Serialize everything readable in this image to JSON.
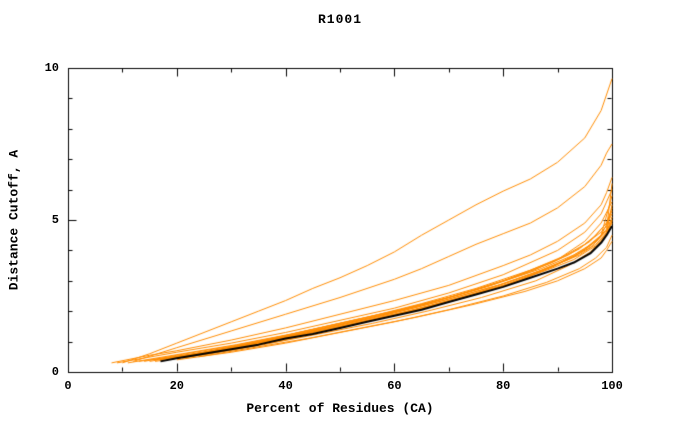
{
  "chart_data": {
    "type": "line",
    "title": "R1001",
    "xlabel": "Percent of Residues (CA)",
    "ylabel": "Distance Cutoff, A",
    "xlim": [
      0,
      100
    ],
    "ylim": [
      0,
      10
    ],
    "x_ticks": [
      0,
      20,
      40,
      60,
      80,
      100
    ],
    "y_ticks": [
      0,
      5,
      10
    ],
    "x_minor_step": 10,
    "y_minor_step": 1,
    "grid": false,
    "legend": "none",
    "colors": {
      "model": "#ff8c00",
      "reference": "#000000",
      "frame": "#000000"
    },
    "series": [
      {
        "name": "model-01",
        "role": "model",
        "points": [
          [
            10,
            0.3
          ],
          [
            15,
            0.6
          ],
          [
            20,
            0.95
          ],
          [
            25,
            1.3
          ],
          [
            30,
            1.65
          ],
          [
            35,
            2.0
          ],
          [
            40,
            2.35
          ],
          [
            45,
            2.75
          ],
          [
            50,
            3.1
          ],
          [
            55,
            3.5
          ],
          [
            60,
            3.95
          ],
          [
            65,
            4.5
          ],
          [
            70,
            5.0
          ],
          [
            75,
            5.5
          ],
          [
            80,
            5.95
          ],
          [
            85,
            6.35
          ],
          [
            90,
            6.9
          ],
          [
            95,
            7.7
          ],
          [
            98,
            8.6
          ],
          [
            100,
            9.65
          ]
        ]
      },
      {
        "name": "model-02",
        "role": "model",
        "points": [
          [
            12,
            0.35
          ],
          [
            20,
            0.8
          ],
          [
            30,
            1.35
          ],
          [
            40,
            1.9
          ],
          [
            50,
            2.45
          ],
          [
            60,
            3.05
          ],
          [
            65,
            3.4
          ],
          [
            70,
            3.8
          ],
          [
            75,
            4.2
          ],
          [
            80,
            4.55
          ],
          [
            85,
            4.9
          ],
          [
            90,
            5.4
          ],
          [
            95,
            6.1
          ],
          [
            98,
            6.8
          ],
          [
            99,
            7.2
          ],
          [
            100,
            7.5
          ]
        ]
      },
      {
        "name": "model-03",
        "role": "model",
        "points": [
          [
            8,
            0.3
          ],
          [
            15,
            0.55
          ],
          [
            20,
            0.7
          ],
          [
            30,
            1.05
          ],
          [
            40,
            1.45
          ],
          [
            50,
            1.9
          ],
          [
            60,
            2.35
          ],
          [
            70,
            2.85
          ],
          [
            80,
            3.5
          ],
          [
            85,
            3.85
          ],
          [
            90,
            4.3
          ],
          [
            95,
            4.9
          ],
          [
            98,
            5.5
          ],
          [
            99,
            5.9
          ],
          [
            100,
            6.4
          ]
        ]
      },
      {
        "name": "model-04",
        "role": "model",
        "points": [
          [
            9,
            0.3
          ],
          [
            20,
            0.65
          ],
          [
            30,
            0.95
          ],
          [
            40,
            1.3
          ],
          [
            50,
            1.7
          ],
          [
            60,
            2.1
          ],
          [
            70,
            2.6
          ],
          [
            80,
            3.2
          ],
          [
            90,
            4.0
          ],
          [
            95,
            4.6
          ],
          [
            98,
            5.2
          ],
          [
            100,
            6.0
          ]
        ]
      },
      {
        "name": "model-05",
        "role": "model",
        "points": [
          [
            14,
            0.35
          ],
          [
            20,
            0.55
          ],
          [
            30,
            0.85
          ],
          [
            40,
            1.2
          ],
          [
            50,
            1.6
          ],
          [
            60,
            2.0
          ],
          [
            70,
            2.45
          ],
          [
            80,
            3.0
          ],
          [
            90,
            3.7
          ],
          [
            95,
            4.3
          ],
          [
            98,
            4.9
          ],
          [
            100,
            5.6
          ]
        ]
      },
      {
        "name": "model-06",
        "role": "model",
        "points": [
          [
            16,
            0.4
          ],
          [
            25,
            0.65
          ],
          [
            35,
            1.0
          ],
          [
            45,
            1.35
          ],
          [
            55,
            1.75
          ],
          [
            65,
            2.2
          ],
          [
            75,
            2.7
          ],
          [
            85,
            3.3
          ],
          [
            92,
            3.85
          ],
          [
            96,
            4.3
          ],
          [
            99,
            4.9
          ],
          [
            100,
            5.3
          ]
        ]
      },
      {
        "name": "model-07",
        "role": "model",
        "points": [
          [
            18,
            0.4
          ],
          [
            25,
            0.6
          ],
          [
            35,
            0.95
          ],
          [
            45,
            1.3
          ],
          [
            55,
            1.7
          ],
          [
            65,
            2.1
          ],
          [
            75,
            2.6
          ],
          [
            85,
            3.2
          ],
          [
            92,
            3.7
          ],
          [
            96,
            4.1
          ],
          [
            99,
            4.6
          ],
          [
            100,
            5.1
          ]
        ]
      },
      {
        "name": "model-08",
        "role": "model",
        "points": [
          [
            20,
            0.45
          ],
          [
            30,
            0.75
          ],
          [
            40,
            1.1
          ],
          [
            50,
            1.5
          ],
          [
            60,
            1.9
          ],
          [
            70,
            2.35
          ],
          [
            80,
            2.85
          ],
          [
            88,
            3.35
          ],
          [
            93,
            3.7
          ],
          [
            97,
            4.15
          ],
          [
            99,
            4.5
          ],
          [
            100,
            5.0
          ]
        ]
      },
      {
        "name": "model-09",
        "role": "model",
        "points": [
          [
            22,
            0.5
          ],
          [
            30,
            0.8
          ],
          [
            40,
            1.15
          ],
          [
            50,
            1.55
          ],
          [
            60,
            1.95
          ],
          [
            70,
            2.4
          ],
          [
            80,
            2.9
          ],
          [
            88,
            3.4
          ],
          [
            94,
            3.85
          ],
          [
            97,
            4.2
          ],
          [
            99,
            4.55
          ],
          [
            100,
            4.9
          ]
        ]
      },
      {
        "name": "model-10",
        "role": "model",
        "points": [
          [
            15,
            0.35
          ],
          [
            25,
            0.65
          ],
          [
            35,
            1.0
          ],
          [
            45,
            1.4
          ],
          [
            55,
            1.8
          ],
          [
            65,
            2.25
          ],
          [
            75,
            2.75
          ],
          [
            85,
            3.35
          ],
          [
            91,
            3.8
          ],
          [
            95,
            4.2
          ],
          [
            98,
            4.6
          ],
          [
            100,
            5.0
          ]
        ]
      },
      {
        "name": "model-11",
        "role": "model",
        "points": [
          [
            17,
            0.4
          ],
          [
            27,
            0.7
          ],
          [
            37,
            1.05
          ],
          [
            47,
            1.45
          ],
          [
            57,
            1.85
          ],
          [
            67,
            2.3
          ],
          [
            77,
            2.8
          ],
          [
            87,
            3.4
          ],
          [
            93,
            3.85
          ],
          [
            97,
            4.3
          ],
          [
            99,
            4.65
          ],
          [
            100,
            4.95
          ]
        ]
      },
      {
        "name": "model-12",
        "role": "model",
        "points": [
          [
            20,
            0.4
          ],
          [
            30,
            0.65
          ],
          [
            40,
            0.95
          ],
          [
            50,
            1.3
          ],
          [
            60,
            1.65
          ],
          [
            70,
            2.05
          ],
          [
            80,
            2.5
          ],
          [
            88,
            2.95
          ],
          [
            94,
            3.4
          ],
          [
            97,
            3.75
          ],
          [
            99,
            4.1
          ],
          [
            100,
            4.5
          ]
        ]
      },
      {
        "name": "model-13",
        "role": "model",
        "points": [
          [
            24,
            0.5
          ],
          [
            34,
            0.8
          ],
          [
            44,
            1.1
          ],
          [
            54,
            1.45
          ],
          [
            64,
            1.8
          ],
          [
            74,
            2.2
          ],
          [
            84,
            2.65
          ],
          [
            90,
            3.0
          ],
          [
            95,
            3.4
          ],
          [
            98,
            3.75
          ],
          [
            99,
            4.0
          ],
          [
            100,
            4.3
          ]
        ]
      },
      {
        "name": "model-14",
        "role": "model",
        "points": [
          [
            13,
            0.35
          ],
          [
            23,
            0.6
          ],
          [
            33,
            0.9
          ],
          [
            43,
            1.25
          ],
          [
            53,
            1.6
          ],
          [
            63,
            2.0
          ],
          [
            73,
            2.45
          ],
          [
            83,
            3.0
          ],
          [
            90,
            3.55
          ],
          [
            95,
            4.05
          ],
          [
            98,
            4.5
          ],
          [
            100,
            5.2
          ]
        ]
      },
      {
        "name": "model-15",
        "role": "model",
        "points": [
          [
            11,
            0.3
          ],
          [
            21,
            0.6
          ],
          [
            31,
            0.9
          ],
          [
            41,
            1.25
          ],
          [
            51,
            1.65
          ],
          [
            61,
            2.05
          ],
          [
            71,
            2.5
          ],
          [
            81,
            3.05
          ],
          [
            89,
            3.6
          ],
          [
            94,
            4.05
          ],
          [
            97,
            4.5
          ],
          [
            99,
            4.9
          ],
          [
            100,
            5.4
          ]
        ]
      },
      {
        "name": "model-16",
        "role": "model",
        "points": [
          [
            19,
            0.45
          ],
          [
            29,
            0.75
          ],
          [
            39,
            1.1
          ],
          [
            49,
            1.5
          ],
          [
            59,
            1.9
          ],
          [
            69,
            2.35
          ],
          [
            79,
            2.85
          ],
          [
            87,
            3.35
          ],
          [
            93,
            3.8
          ],
          [
            96,
            4.15
          ],
          [
            98,
            4.5
          ],
          [
            100,
            5.8
          ]
        ]
      },
      {
        "name": "model-17",
        "role": "model",
        "points": [
          [
            21,
            0.45
          ],
          [
            31,
            0.75
          ],
          [
            41,
            1.1
          ],
          [
            51,
            1.5
          ],
          [
            61,
            1.9
          ],
          [
            71,
            2.35
          ],
          [
            81,
            2.9
          ],
          [
            89,
            3.45
          ],
          [
            94,
            3.9
          ],
          [
            97,
            4.3
          ],
          [
            99,
            4.7
          ],
          [
            100,
            6.2
          ]
        ]
      },
      {
        "name": "model-18",
        "role": "model",
        "points": [
          [
            16,
            0.35
          ],
          [
            26,
            0.6
          ],
          [
            36,
            0.9
          ],
          [
            46,
            1.25
          ],
          [
            56,
            1.6
          ],
          [
            66,
            2.0
          ],
          [
            76,
            2.45
          ],
          [
            86,
            3.0
          ],
          [
            92,
            3.5
          ],
          [
            96,
            3.95
          ],
          [
            98,
            4.3
          ],
          [
            99,
            4.6
          ],
          [
            100,
            5.5
          ]
        ]
      },
      {
        "name": "reference",
        "role": "reference",
        "points": [
          [
            17,
            0.35
          ],
          [
            20,
            0.45
          ],
          [
            25,
            0.6
          ],
          [
            30,
            0.75
          ],
          [
            35,
            0.9
          ],
          [
            40,
            1.1
          ],
          [
            45,
            1.25
          ],
          [
            50,
            1.45
          ],
          [
            55,
            1.65
          ],
          [
            60,
            1.85
          ],
          [
            65,
            2.05
          ],
          [
            70,
            2.3
          ],
          [
            75,
            2.55
          ],
          [
            80,
            2.8
          ],
          [
            85,
            3.1
          ],
          [
            90,
            3.4
          ],
          [
            93,
            3.6
          ],
          [
            96,
            3.9
          ],
          [
            98,
            4.25
          ],
          [
            99,
            4.5
          ],
          [
            100,
            4.8
          ]
        ]
      }
    ]
  }
}
